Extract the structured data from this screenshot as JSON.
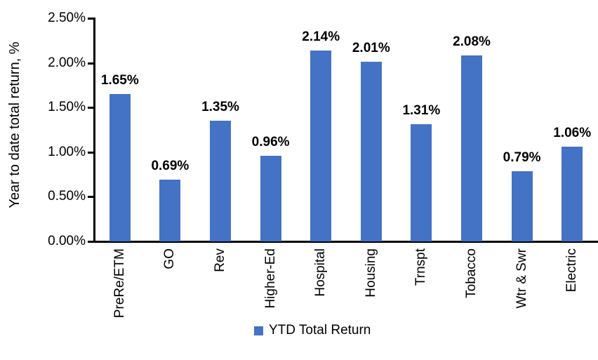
{
  "chart_data": {
    "type": "bar",
    "title": "",
    "xlabel": "",
    "ylabel": "Year to date total return, %",
    "categories": [
      "PreRe/ETM",
      "GO",
      "Rev",
      "Higher-Ed",
      "Hospital",
      "Housing",
      "Trnspt",
      "Tobacco",
      "Wtr & Swr",
      "Electric"
    ],
    "values": [
      1.65,
      0.69,
      1.35,
      0.96,
      2.14,
      2.01,
      1.31,
      2.08,
      0.79,
      1.06
    ],
    "value_labels": [
      "1.65%",
      "0.69%",
      "1.35%",
      "0.96%",
      "2.14%",
      "2.01%",
      "1.31%",
      "2.08%",
      "0.79%",
      "1.06%"
    ],
    "series_name": "YTD Total Return",
    "bar_color": "#4472C4",
    "grid": false,
    "y_axis": {
      "range": [
        0,
        2.5
      ],
      "ticks": [
        {
          "value": 0.0,
          "label": "0.00%"
        },
        {
          "value": 0.5,
          "label": "0.50%"
        },
        {
          "value": 1.0,
          "label": "1.00%"
        },
        {
          "value": 1.5,
          "label": "1.50%"
        },
        {
          "value": 2.0,
          "label": "2.00%"
        },
        {
          "value": 2.5,
          "label": "2.50%"
        }
      ]
    },
    "legend": {
      "label": "YTD Total Return",
      "position": "bottom",
      "swatch_color": "#4472C4"
    }
  }
}
